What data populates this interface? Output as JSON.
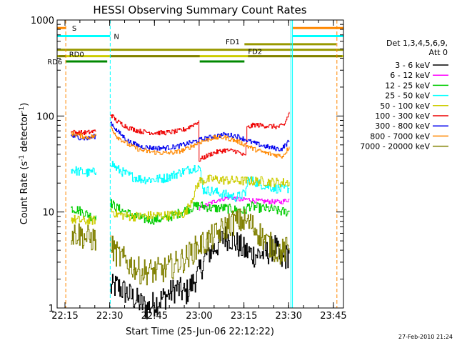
{
  "chart_data": {
    "type": "line",
    "title": "HESSI Observing Summary Count Rates",
    "xlabel": "Start Time (25-Jun-06 22:12:22)",
    "ylabel_main": "Count Rate (s",
    "ylabel_sup1": "-1",
    "ylabel_mid": " detector",
    "ylabel_sup2": "-1",
    "ylabel_end": ")",
    "y_scale": "log",
    "ylim": [
      1,
      1000
    ],
    "xlim_minutes": [
      0,
      96
    ],
    "x_ticks": [
      {
        "m": 2.63,
        "label": "22:15"
      },
      {
        "m": 17.63,
        "label": "22:30"
      },
      {
        "m": 32.63,
        "label": "22:45"
      },
      {
        "m": 47.63,
        "label": "23:00"
      },
      {
        "m": 62.63,
        "label": "23:15"
      },
      {
        "m": 77.63,
        "label": "23:30"
      },
      {
        "m": 92.63,
        "label": "23:45"
      }
    ],
    "y_ticks": [
      {
        "v": 1,
        "label": "1"
      },
      {
        "v": 10,
        "label": "10"
      },
      {
        "v": 100,
        "label": "100"
      },
      {
        "v": 1000,
        "label": "1000"
      }
    ],
    "legend_header": [
      "Det 1,3,4,5,6,9,",
      "Att 0"
    ],
    "series": [
      {
        "name": "3 - 6 keV",
        "color": "#000000",
        "segments": [
          [
            [
              17.8,
              1.6
            ],
            [
              20,
              1.7
            ],
            [
              25,
              1.3
            ],
            [
              30,
              1.0
            ],
            [
              36,
              1.3
            ],
            [
              40,
              1.6
            ],
            [
              43,
              1.4
            ],
            [
              47.5,
              2.3
            ],
            [
              50,
              3.6
            ],
            [
              53,
              4.3
            ],
            [
              56,
              5.5
            ],
            [
              58,
              5.4
            ],
            [
              61,
              4.4
            ],
            [
              63,
              3.9
            ],
            [
              66,
              3.6
            ],
            [
              70,
              3.7
            ],
            [
              73,
              4.4
            ],
            [
              75,
              3.0
            ],
            [
              77.8,
              3.7
            ]
          ]
        ]
      },
      {
        "name": "6 - 12 keV",
        "color": "#ff00ff",
        "segments": [
          [
            [
              47.6,
              10.7
            ],
            [
              50,
              11.8
            ],
            [
              54,
              13.5
            ],
            [
              58,
              14.2
            ],
            [
              62,
              13.3
            ],
            [
              63.5,
              13.6
            ],
            [
              67,
              13.0
            ],
            [
              72,
              12.8
            ],
            [
              75,
              12.7
            ],
            [
              77.8,
              13.5
            ]
          ]
        ]
      },
      {
        "name": "12 - 25 keV",
        "color": "#00cc00",
        "segments": [
          [
            [
              4.6,
              11.0
            ],
            [
              7,
              10.5
            ],
            [
              10,
              9.5
            ],
            [
              12,
              8.8
            ],
            [
              13,
              9.2
            ]
          ],
          [
            [
              17.8,
              12.5
            ],
            [
              20,
              11.0
            ],
            [
              24,
              9.6
            ],
            [
              28,
              8.5
            ],
            [
              32,
              8.3
            ],
            [
              36,
              8.5
            ],
            [
              40,
              9.5
            ],
            [
              43,
              10.5
            ],
            [
              47.5,
              11.8
            ],
            [
              52,
              10.9
            ],
            [
              56,
              11.0
            ],
            [
              60,
              10.5
            ],
            [
              63,
              10.2
            ],
            [
              64,
              11.6
            ],
            [
              68,
              11.0
            ],
            [
              72,
              10.7
            ],
            [
              75,
              10.1
            ],
            [
              77.8,
              10.0
            ]
          ]
        ]
      },
      {
        "name": "25 - 50 keV",
        "color": "#00ffff",
        "segments": [
          [
            [
              4.6,
              28
            ],
            [
              7,
              26.5
            ],
            [
              10,
              25.5
            ],
            [
              13,
              26
            ]
          ],
          [
            [
              17.8,
              33.6
            ],
            [
              20,
              28
            ],
            [
              24,
              24
            ],
            [
              28,
              22
            ],
            [
              32,
              21.8
            ],
            [
              36,
              22.5
            ],
            [
              40,
              25
            ],
            [
              43,
              27
            ],
            [
              47.5,
              30
            ],
            [
              49,
              17
            ],
            [
              52,
              16.5
            ],
            [
              56,
              15.3
            ],
            [
              60,
              14.2
            ],
            [
              63,
              15.7
            ],
            [
              64,
              22
            ],
            [
              68,
              19.5
            ],
            [
              72,
              18
            ],
            [
              75,
              17.2
            ],
            [
              77.8,
              17.7
            ]
          ]
        ]
      },
      {
        "name": "50 - 100 keV",
        "color": "#cccc00",
        "segments": [
          [
            [
              4.6,
              8.5
            ],
            [
              7,
              8.2
            ],
            [
              10,
              8.0
            ],
            [
              13,
              8.3
            ]
          ],
          [
            [
              17.8,
              10.5
            ],
            [
              20,
              9.5
            ],
            [
              24,
              9.0
            ],
            [
              28,
              9.0
            ],
            [
              32,
              9.2
            ],
            [
              36,
              9.2
            ],
            [
              40,
              9.4
            ],
            [
              43,
              9.7
            ],
            [
              47.6,
              21
            ],
            [
              52,
              22
            ],
            [
              56,
              21.5
            ],
            [
              60,
              21.2
            ],
            [
              63,
              21.0
            ],
            [
              64,
              21.0
            ],
            [
              68,
              21.0
            ],
            [
              72,
              20.5
            ],
            [
              75,
              20.2
            ],
            [
              77.8,
              20.5
            ]
          ]
        ]
      },
      {
        "name": "100 - 300 keV",
        "color": "#ee0000",
        "segments": [
          [
            [
              4.6,
              68
            ],
            [
              7,
              67
            ],
            [
              10,
              67
            ],
            [
              13,
              70
            ]
          ],
          [
            [
              17.8,
              105
            ],
            [
              20,
              88
            ],
            [
              24,
              75
            ],
            [
              28,
              69
            ],
            [
              32,
              67
            ],
            [
              36,
              67
            ],
            [
              40,
              69
            ],
            [
              43,
              73
            ],
            [
              47.5,
              88
            ],
            [
              47.6,
              35
            ],
            [
              52,
              41
            ],
            [
              56,
              44
            ],
            [
              60,
              43
            ],
            [
              63,
              38
            ],
            [
              63.6,
              75
            ],
            [
              66,
              81
            ],
            [
              70,
              79
            ],
            [
              74,
              77
            ],
            [
              76,
              80
            ],
            [
              77.8,
              110
            ]
          ]
        ]
      },
      {
        "name": "300 - 800 keV",
        "color": "#0000ee",
        "segments": [
          [
            [
              4.6,
              62
            ],
            [
              7,
              60
            ],
            [
              10,
              58
            ],
            [
              13,
              62
            ]
          ],
          [
            [
              17.8,
              87
            ],
            [
              20,
              70
            ],
            [
              24,
              54
            ],
            [
              28,
              48
            ],
            [
              32,
              46.5
            ],
            [
              36,
              46.5
            ],
            [
              40,
              48
            ],
            [
              43,
              51
            ],
            [
              47.5,
              56
            ],
            [
              52,
              61
            ],
            [
              56,
              64
            ],
            [
              60,
              62
            ],
            [
              63,
              57
            ],
            [
              64,
              55
            ],
            [
              67,
              51
            ],
            [
              70,
              48
            ],
            [
              73,
              46
            ],
            [
              75,
              45
            ],
            [
              77.8,
              55
            ]
          ]
        ]
      },
      {
        "name": "800 - 7000 keV",
        "color": "#ff8800",
        "segments": [
          [
            [
              4.6,
              66
            ],
            [
              7,
              63
            ],
            [
              10,
              60
            ],
            [
              13,
              62
            ]
          ],
          [
            [
              17.8,
              78
            ],
            [
              20,
              61
            ],
            [
              24,
              50
            ],
            [
              28,
              44
            ],
            [
              32,
              42
            ],
            [
              36,
              41
            ],
            [
              40,
              42
            ],
            [
              43,
              45
            ],
            [
              47.5,
              53
            ],
            [
              52,
              59
            ],
            [
              56,
              60
            ],
            [
              60,
              55
            ],
            [
              63,
              50
            ],
            [
              66,
              45
            ],
            [
              70,
              41
            ],
            [
              74,
              39
            ],
            [
              75.5,
              38
            ],
            [
              77.8,
              48
            ]
          ]
        ]
      },
      {
        "name": "7000 - 20000 keV",
        "color": "#808000",
        "segments": [
          [
            [
              4.6,
              5.9
            ],
            [
              7,
              6.0
            ],
            [
              10,
              5.3
            ],
            [
              13,
              5.2
            ]
          ],
          [
            [
              17.8,
              4.5
            ],
            [
              20,
              3.6
            ],
            [
              24,
              2.9
            ],
            [
              28,
              2.4
            ],
            [
              32,
              2.4
            ],
            [
              36,
              2.5
            ],
            [
              40,
              2.9
            ],
            [
              43,
              3.3
            ],
            [
              47.5,
              4.5
            ],
            [
              50,
              4.9
            ],
            [
              54,
              6.0
            ],
            [
              58,
              7.7
            ],
            [
              62,
              8.1
            ],
            [
              64,
              7.8
            ],
            [
              67,
              6.4
            ],
            [
              70,
              4.9
            ],
            [
              73,
              4.1
            ],
            [
              75,
              3.8
            ],
            [
              77.8,
              4.2
            ]
          ]
        ]
      }
    ],
    "flag_labels": {
      "S": "S",
      "N": "N",
      "FD1": "FD1",
      "FD2": "FD2",
      "RD0": "RD0",
      "RD6": "RD6"
    },
    "flags": [
      {
        "label": "S",
        "color": "#ff8800",
        "level": 825,
        "segments": [
          [
            0,
            2.9
          ],
          [
            78.9,
            96
          ]
        ]
      },
      {
        "label": "N",
        "color": "#00ffff",
        "level": 680,
        "segments": [
          [
            0,
            17.8
          ],
          [
            78.9,
            96
          ]
        ]
      },
      {
        "label": "FD1",
        "color": "#999900",
        "level": 560,
        "segments": [
          [
            62.8,
            93.6
          ]
        ]
      },
      {
        "label": "FD2",
        "color": "#999900",
        "level": 490,
        "segments": [
          [
            0,
            96
          ]
        ]
      },
      {
        "label": "RD0",
        "color": "#cccc00",
        "level": 420,
        "segments": [
          [
            0,
            96
          ]
        ]
      },
      {
        "label": "RD0-bar",
        "color": "#808000",
        "level": 420,
        "segments": [
          [
            0.4,
            2.8
          ],
          [
            17.8,
            47.8
          ],
          [
            64.0,
            95.5
          ]
        ]
      },
      {
        "label": "RD6",
        "color": "#008800",
        "level": 370,
        "segments": [
          [
            2.8,
            16.8
          ],
          [
            47.8,
            62.8
          ]
        ]
      }
    ],
    "event_lines": [
      {
        "m": 2.9,
        "color": "#ff8800",
        "dash": true
      },
      {
        "m": 17.8,
        "color": "#00ffff",
        "dash": true
      },
      {
        "m": 78.4,
        "color": "#00ffff",
        "dash": false
      },
      {
        "m": 78.9,
        "color": "#00ffff",
        "dash": false
      },
      {
        "m": 93.8,
        "color": "#ff8800",
        "dash": true
      }
    ]
  },
  "timestamp": "27-Feb-2010 21:24"
}
